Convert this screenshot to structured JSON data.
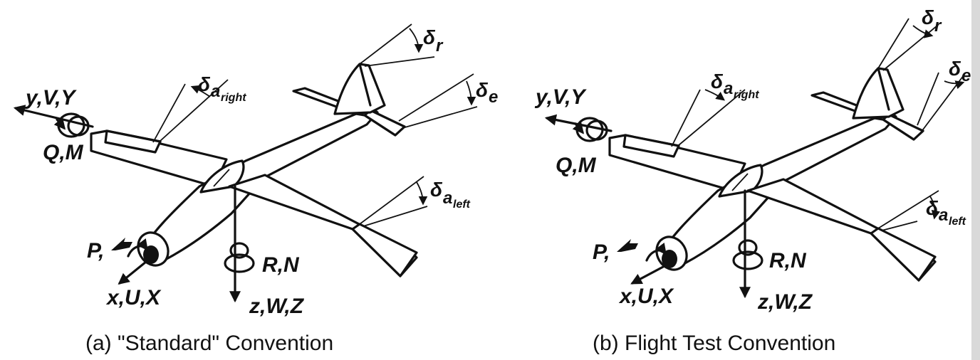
{
  "panels": [
    {
      "caption": "(a)  \"Standard\" Convention",
      "labels": {
        "y_axis": "y,V,Y",
        "q_moment": "Q,M",
        "p_moment": "P,",
        "x_axis": "x,U,X",
        "r_moment": "R,N",
        "z_axis": "z,W,Z",
        "delta": "δ",
        "aileron_right_sub": "a",
        "aileron_right_subsub": "right",
        "aileron_left_sub": "a",
        "aileron_left_subsub": "left",
        "elevator_sub": "e",
        "rudder_sub": "r"
      }
    },
    {
      "caption": "(b)  Flight Test Convention",
      "labels": {
        "y_axis": "y,V,Y",
        "q_moment": "Q,M",
        "p_moment": "P,",
        "x_axis": "x,U,X",
        "r_moment": "R,N",
        "z_axis": "z,W,Z",
        "delta": "δ",
        "aileron_right_sub": "a",
        "aileron_right_subsub": "right",
        "aileron_left_sub": "a",
        "aileron_left_subsub": "left",
        "elevator_sub": "e",
        "rudder_sub": "r"
      }
    }
  ],
  "colors": {
    "ink": "#111111",
    "background": "#ffffff"
  }
}
